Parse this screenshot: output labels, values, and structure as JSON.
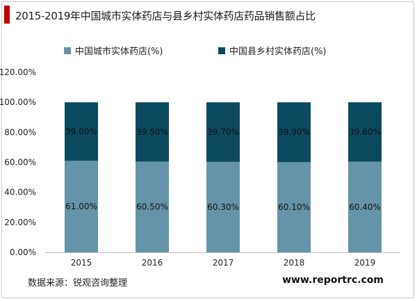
{
  "title": "2015-2019年中国城市实体药店与县乡村实体药店药品销售额占比",
  "source": "数据来源：锐观咨询整理",
  "website": "www.reportrc.com",
  "colors": {
    "accent": "#c00000",
    "urban": "#6594a8",
    "rural": "#0c4a60"
  },
  "chart_data": {
    "type": "bar",
    "stacked": true,
    "categories": [
      "2015",
      "2016",
      "2017",
      "2018",
      "2019"
    ],
    "series": [
      {
        "name": "中国城市实体药店(%)",
        "values": [
          61.0,
          60.5,
          60.3,
          60.1,
          60.4
        ],
        "labels": [
          "61.00%",
          "60.50%",
          "60.30%",
          "60.10%",
          "60.40%"
        ]
      },
      {
        "name": "中国县乡村实体药店(%)",
        "values": [
          39.0,
          39.5,
          39.7,
          39.9,
          39.6
        ],
        "labels": [
          "39.00%",
          "39.50%",
          "39.70%",
          "39.90%",
          "39.60%"
        ]
      }
    ],
    "ylim": [
      0,
      120
    ],
    "yticks": [
      "0.00%",
      "20.00%",
      "40.00%",
      "60.00%",
      "80.00%",
      "100.00%",
      "120.00%"
    ],
    "grid": false,
    "legend_position": "top"
  }
}
